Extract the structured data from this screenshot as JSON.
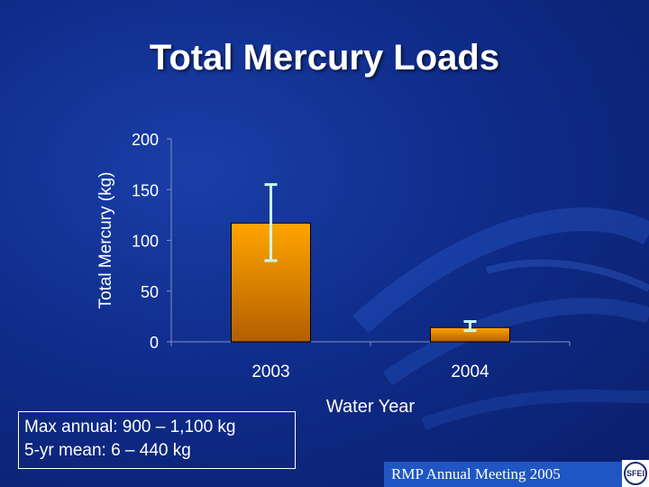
{
  "slide": {
    "title": "Total Mercury Loads",
    "notes": [
      "Max annual: 900 – 1,100 kg",
      "5-yr mean: 6 – 440 kg"
    ],
    "footer": "RMP Annual Meeting 2005",
    "logo_text": "SFEI"
  },
  "colors": {
    "background": "#0f2c8a",
    "bar_top": "#ffa500",
    "bar_bottom": "#b35f00",
    "error_bar": "#c8ffe6",
    "axis_text": "#ffffff",
    "axis_line": "#8090c0"
  },
  "chart_data": {
    "type": "bar",
    "title": "",
    "categories": [
      "2003",
      "2004"
    ],
    "values": [
      117,
      14
    ],
    "error_low": [
      80,
      11
    ],
    "error_high": [
      155,
      20
    ],
    "xlabel": "Water Year",
    "ylabel": "Total Mercury (kg)",
    "ylim": [
      0,
      200
    ],
    "yticks": [
      0,
      50,
      100,
      150,
      200
    ],
    "grid": false
  }
}
